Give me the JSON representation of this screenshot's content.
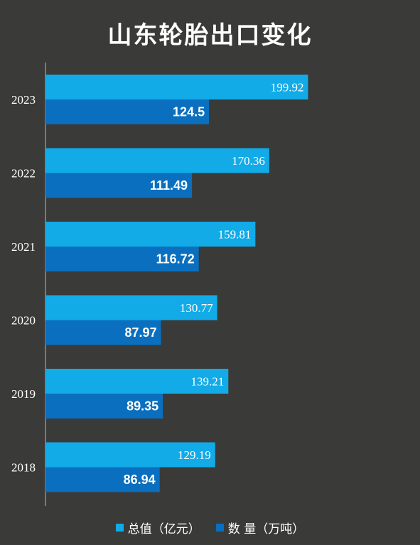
{
  "title": "山东轮胎出口变化",
  "colors": {
    "background": "#3a3a38",
    "series_value": "#12abe8",
    "series_qty": "#0a6fbf",
    "axis": "#b8b8b8"
  },
  "chart_data": {
    "type": "bar",
    "orientation": "horizontal",
    "title": "山东轮胎出口变化",
    "categories": [
      "2023",
      "2022",
      "2021",
      "2020",
      "2019",
      "2018"
    ],
    "series": [
      {
        "name": "总值（亿元）",
        "values": [
          199.92,
          170.36,
          159.81,
          130.77,
          139.21,
          129.19
        ]
      },
      {
        "name": "数 量（万吨）",
        "values": [
          124.5,
          111.49,
          116.72,
          87.97,
          89.35,
          86.94
        ]
      }
    ],
    "value_labels": [
      [
        "199.92",
        "170.36",
        "159.81",
        "130.77",
        "139.21",
        "129.19"
      ],
      [
        "124.5",
        "111.49",
        "116.72",
        "87.97",
        "89.35",
        "86.94"
      ]
    ],
    "legend_position": "bottom",
    "grid": false,
    "xlim": [
      0,
      270
    ]
  }
}
